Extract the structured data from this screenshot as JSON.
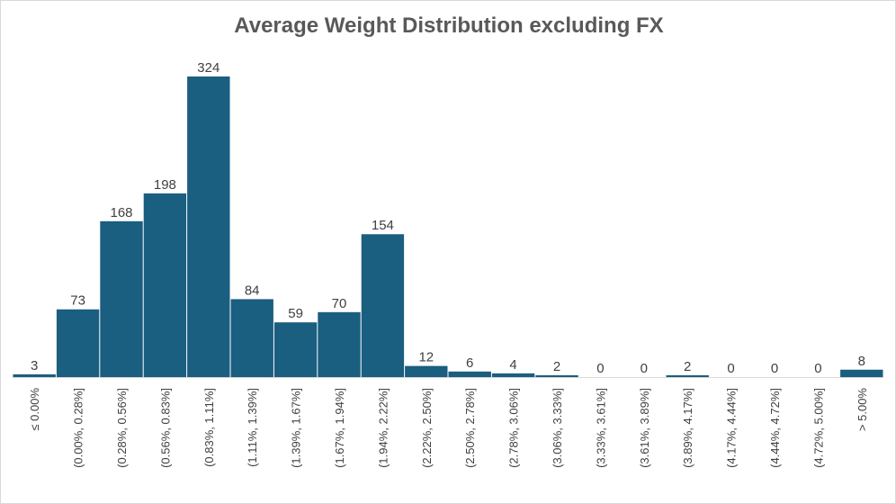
{
  "chart_data": {
    "type": "bar",
    "title": "Average Weight Distribution excluding FX",
    "categories": [
      "≤ 0.00%",
      "(0.00%, 0.28%]",
      "(0.28%, 0.56%]",
      "(0.56%, 0.83%]",
      "(0.83%, 1.11%]",
      "(1.11%, 1.39%]",
      "(1.39%, 1.67%]",
      "(1.67%, 1.94%]",
      "(1.94%, 2.22%]",
      "(2.22%, 2.50%]",
      "(2.50%, 2.78%]",
      "(2.78%, 3.06%]",
      "(3.06%, 3.33%]",
      "(3.33%, 3.61%]",
      "(3.61%, 3.89%]",
      "(3.89%, 4.17%]",
      "(4.17%, 4.44%]",
      "(4.44%, 4.72%]",
      "(4.72%, 5.00%]",
      "> 5.00%"
    ],
    "values": [
      3,
      73,
      168,
      198,
      324,
      84,
      59,
      70,
      154,
      12,
      6,
      4,
      2,
      0,
      0,
      2,
      0,
      0,
      0,
      8
    ],
    "ylim": [
      0,
      324
    ],
    "bar_color": "#1a5e80",
    "grid": false,
    "data_labels": true
  }
}
